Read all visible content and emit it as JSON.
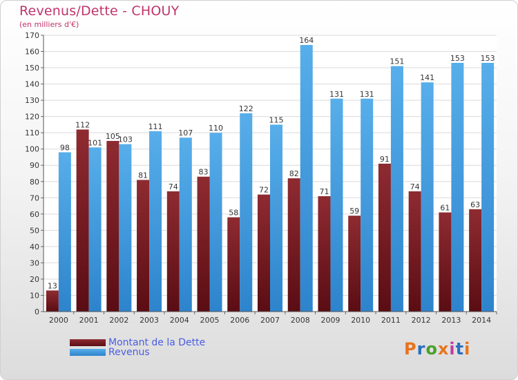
{
  "title": "Revenus/Dette - CHOUY",
  "subtitle": "(en milliers d'€)",
  "logo": {
    "text": "Proxiti",
    "colors": [
      "#e8741c",
      "#2a6fbf",
      "#4aa02c",
      "#e8741c",
      "#c23b9e",
      "#2a6fbf",
      "#e8741c"
    ]
  },
  "colors": {
    "debt": "#8b2a2e",
    "debt_dark": "#5c0f14",
    "revenue": "#4aa3e6",
    "revenue_dark": "#2f86cf",
    "title": "#c0336a",
    "legend_text": "#4a5de0"
  },
  "chart_data": {
    "type": "bar",
    "categories": [
      "2000",
      "2001",
      "2002",
      "2003",
      "2004",
      "2005",
      "2006",
      "2007",
      "2008",
      "2009",
      "2010",
      "2011",
      "2012",
      "2013",
      "2014"
    ],
    "series": [
      {
        "name": "Montant de la Dette",
        "values": [
          13,
          112,
          105,
          81,
          74,
          83,
          58,
          72,
          82,
          71,
          59,
          91,
          74,
          61,
          63
        ]
      },
      {
        "name": "Revenus",
        "values": [
          98,
          101,
          103,
          111,
          107,
          110,
          122,
          115,
          164,
          131,
          131,
          151,
          141,
          153,
          153
        ]
      }
    ],
    "ylim": [
      0,
      170
    ],
    "yticks": [
      0,
      10,
      20,
      30,
      40,
      50,
      60,
      70,
      80,
      90,
      100,
      110,
      120,
      130,
      140,
      150,
      160,
      170
    ],
    "grid": true,
    "legend": "bottom-left"
  }
}
